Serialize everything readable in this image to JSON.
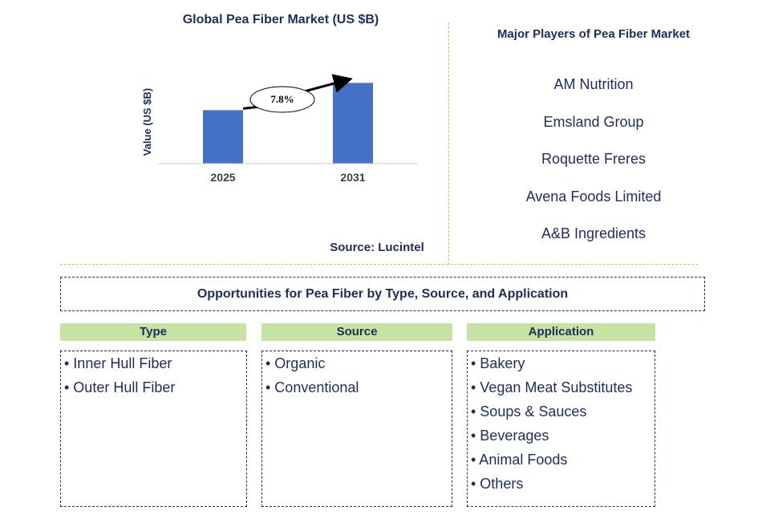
{
  "chart_data": {
    "type": "bar",
    "title": "Global Pea Fiber Market (US $B)",
    "ylabel": "Value (US $B)",
    "xlabel": "",
    "categories": [
      "2025",
      "2031"
    ],
    "values": [
      1.0,
      1.51
    ],
    "ylim": [
      0,
      1.8
    ],
    "bar_color": "#4472c4",
    "annotation": {
      "label": "7.8%",
      "type": "cagr-arrow"
    },
    "grid": false
  },
  "source": "Source: Lucintel",
  "players": {
    "title": "Major Players of Pea Fiber Market",
    "items": [
      "AM Nutrition",
      "Emsland Group",
      "Roquette Freres",
      "Avena Foods Limited",
      "A&B Ingredients"
    ]
  },
  "opportunities": {
    "title": "Opportunities for Pea Fiber by Type, Source, and Application",
    "categories": [
      {
        "header": "Type",
        "items": [
          "• Inner Hull Fiber",
          "• Outer Hull Fiber"
        ]
      },
      {
        "header": "Source",
        "items": [
          "• Organic",
          "• Conventional"
        ]
      },
      {
        "header": "Application",
        "items": [
          "• Bakery",
          "• Vegan Meat Substitutes",
          "• Soups & Sauces",
          "• Beverages",
          "• Animal Foods",
          "• Others"
        ]
      }
    ]
  },
  "colors": {
    "text": "#1f2d5a",
    "bar": "#4472c4",
    "header_bg": "#c6e3a4",
    "divider": "#e8b54a"
  }
}
